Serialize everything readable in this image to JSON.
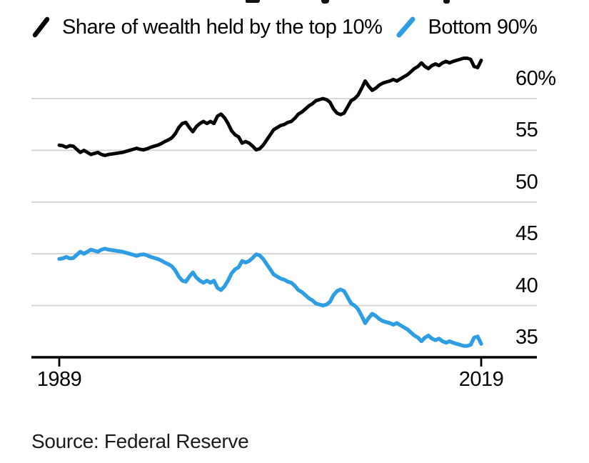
{
  "legend": {
    "items": [
      {
        "label": "Share of wealth held by the top 10%",
        "color": "#000000"
      },
      {
        "label": "Bottom 90%",
        "color": "#2e9de4"
      }
    ]
  },
  "source": {
    "label": "Source: Federal Reserve"
  },
  "colors": {
    "background": "#ffffff",
    "gridline": "#d2d2d2",
    "axis": "#000000",
    "text": "#000000",
    "source_text": "#1b1b1b",
    "top10_line": "#000000",
    "bottom90_line": "#2e9de4"
  },
  "chart_data": {
    "type": "line",
    "grid": "horizontal",
    "legend_position": "top",
    "x_axis": {
      "start_year": 1989,
      "end_year": 2019,
      "frequency": "quarterly",
      "ticks": [
        {
          "year": 1989,
          "label": "1989"
        },
        {
          "year": 2019,
          "label": "2019"
        }
      ]
    },
    "y_axis": {
      "unit": "percent",
      "base_value": 35,
      "gridline_values": [
        40,
        45,
        50,
        55,
        60
      ],
      "ticks": [
        {
          "value": 60,
          "label": "60%"
        },
        {
          "value": 55,
          "label": "55"
        },
        {
          "value": 50,
          "label": "50"
        },
        {
          "value": 45,
          "label": "45"
        },
        {
          "value": 40,
          "label": "40"
        },
        {
          "value": 35,
          "label": "35"
        }
      ]
    },
    "series": [
      {
        "name": "Share of wealth held by the top 10%",
        "color": "#000000",
        "values": [
          55.5,
          55.45,
          55.3,
          55.45,
          55.4,
          55.1,
          54.8,
          55.0,
          54.8,
          54.6,
          54.7,
          54.8,
          54.6,
          54.5,
          54.6,
          54.65,
          54.7,
          54.75,
          54.8,
          54.9,
          55.0,
          55.1,
          55.2,
          55.1,
          55.05,
          55.15,
          55.3,
          55.4,
          55.5,
          55.65,
          55.85,
          56.0,
          56.2,
          56.6,
          57.2,
          57.6,
          57.7,
          57.2,
          56.8,
          57.3,
          57.6,
          57.8,
          57.6,
          57.8,
          57.6,
          58.3,
          58.5,
          58.15,
          57.6,
          56.9,
          56.5,
          56.3,
          55.7,
          55.85,
          55.7,
          55.4,
          55.05,
          55.15,
          55.5,
          56.0,
          56.5,
          57.0,
          57.2,
          57.4,
          57.5,
          57.7,
          57.8,
          58.1,
          58.5,
          58.7,
          59.0,
          59.3,
          59.5,
          59.8,
          59.9,
          60.0,
          59.9,
          59.65,
          59.0,
          58.6,
          58.45,
          58.6,
          59.2,
          59.8,
          60.0,
          60.35,
          61.0,
          61.7,
          61.2,
          60.8,
          61.0,
          61.3,
          61.5,
          61.6,
          61.7,
          61.85,
          61.7,
          61.9,
          62.1,
          62.3,
          62.6,
          62.9,
          63.1,
          63.45,
          63.1,
          62.9,
          63.2,
          63.35,
          63.2,
          63.45,
          63.6,
          63.45,
          63.6,
          63.7,
          63.8,
          63.9,
          63.9,
          63.8,
          63.1,
          63.0,
          63.7
        ]
      },
      {
        "name": "Bottom 90%",
        "color": "#2e9de4",
        "values": [
          44.5,
          44.55,
          44.7,
          44.55,
          44.6,
          44.9,
          45.2,
          45.0,
          45.2,
          45.4,
          45.3,
          45.2,
          45.4,
          45.5,
          45.4,
          45.35,
          45.3,
          45.25,
          45.2,
          45.1,
          45.0,
          44.9,
          44.8,
          44.9,
          44.95,
          44.85,
          44.7,
          44.6,
          44.5,
          44.35,
          44.15,
          44.0,
          43.8,
          43.4,
          42.8,
          42.4,
          42.3,
          42.8,
          43.2,
          42.7,
          42.4,
          42.2,
          42.4,
          42.2,
          42.4,
          41.7,
          41.5,
          41.85,
          42.4,
          43.1,
          43.5,
          43.7,
          44.3,
          44.15,
          44.3,
          44.6,
          44.95,
          44.85,
          44.5,
          44.0,
          43.5,
          43.0,
          42.8,
          42.6,
          42.5,
          42.3,
          42.2,
          41.9,
          41.5,
          41.3,
          41.0,
          40.7,
          40.5,
          40.2,
          40.1,
          40.0,
          40.1,
          40.35,
          41.0,
          41.4,
          41.55,
          41.4,
          40.8,
          40.2,
          40.0,
          39.65,
          39.0,
          38.3,
          38.8,
          39.2,
          39.0,
          38.7,
          38.5,
          38.4,
          38.3,
          38.15,
          38.3,
          38.1,
          37.9,
          37.7,
          37.4,
          37.1,
          36.9,
          36.55,
          36.9,
          37.1,
          36.8,
          36.65,
          36.8,
          36.55,
          36.4,
          36.55,
          36.4,
          36.3,
          36.2,
          36.1,
          36.1,
          36.2,
          36.9,
          37.0,
          36.3
        ]
      }
    ]
  }
}
